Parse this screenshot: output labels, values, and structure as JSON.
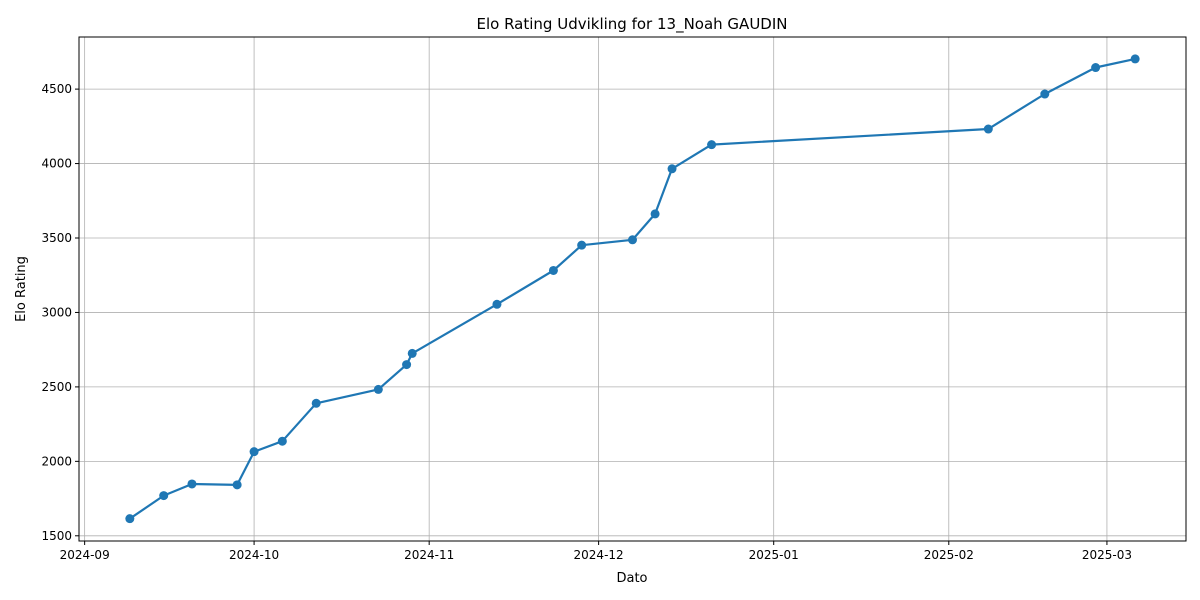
{
  "chart_data": {
    "type": "line",
    "title": "Elo Rating Udvikling for 13_Noah GAUDIN",
    "xlabel": "Dato",
    "ylabel": "Elo Rating",
    "grid": true,
    "line_color": "#1f77b4",
    "xlim": [
      "2024-08-31",
      "2025-03-15"
    ],
    "ylim": [
      1465,
      4850
    ],
    "x_ticks": [
      "2024-09",
      "2024-10",
      "2024-11",
      "2024-12",
      "2025-01",
      "2025-02",
      "2025-03"
    ],
    "y_ticks": [
      1500,
      2000,
      2500,
      3000,
      3500,
      4000,
      4500
    ],
    "series": [
      {
        "x": [
          "2024-09-09",
          "2024-09-15",
          "2024-09-20",
          "2024-09-28",
          "2024-10-01",
          "2024-10-06",
          "2024-10-12",
          "2024-10-23",
          "2024-10-28",
          "2024-10-29",
          "2024-11-13",
          "2024-11-23",
          "2024-11-28",
          "2024-12-07",
          "2024-12-11",
          "2024-12-14",
          "2024-12-21",
          "2025-02-08",
          "2025-02-18",
          "2025-02-27",
          "2025-03-06"
        ],
        "y": [
          1615,
          1770,
          1848,
          1842,
          2065,
          2135,
          2390,
          2483,
          2650,
          2725,
          3055,
          3282,
          3452,
          3488,
          3662,
          3965,
          4127,
          4232,
          4467,
          4645,
          4703
        ]
      }
    ]
  }
}
